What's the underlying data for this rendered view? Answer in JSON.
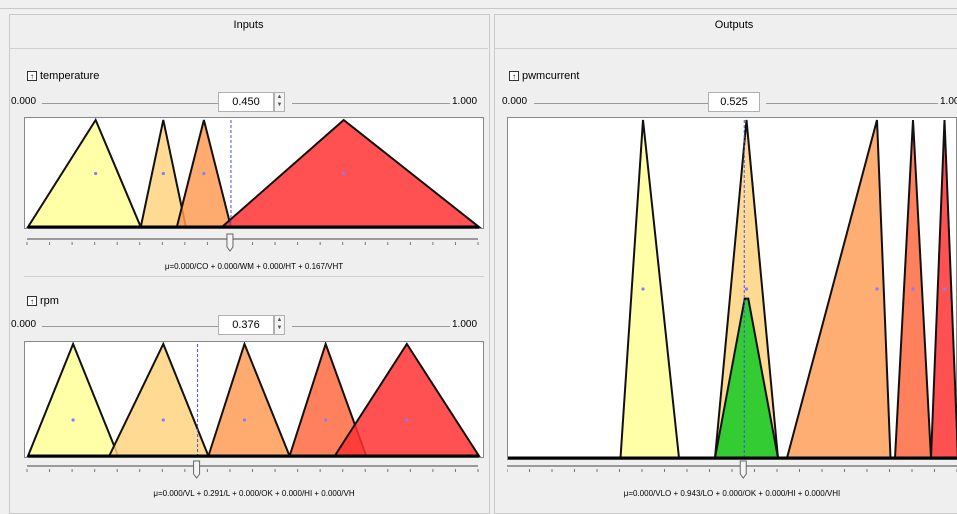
{
  "panels": {
    "inputs_title": "Inputs",
    "outputs_title": "Outputs"
  },
  "variables": {
    "temperature": {
      "name": "temperature",
      "min_label": "0.000",
      "max_label": "1.000",
      "value_text": "0.450",
      "value": 0.45,
      "formula": "μ=0.000/CO + 0.000/WM + 0.000/HT + 0.167/VHT",
      "terms": [
        {
          "id": "CO",
          "a": 0.0,
          "b": 0.15,
          "c": 0.25,
          "color": "#ffff99"
        },
        {
          "id": "WM",
          "a": 0.25,
          "b": 0.3,
          "c": 0.35,
          "color": "#ffd47f"
        },
        {
          "id": "HT",
          "a": 0.33,
          "b": 0.39,
          "c": 0.45,
          "color": "#ff9b55"
        },
        {
          "id": "VHT",
          "a": 0.43,
          "b": 0.7,
          "c": 1.0,
          "color": "#ff3333"
        }
      ]
    },
    "rpm": {
      "name": "rpm",
      "min_label": "0.000",
      "max_label": "1.000",
      "value_text": "0.376",
      "value": 0.376,
      "formula": "μ=0.000/VL + 0.291/L + 0.000/OK + 0.000/HI + 0.000/VH",
      "terms": [
        {
          "id": "VL",
          "a": 0.0,
          "b": 0.1,
          "c": 0.2,
          "color": "#ffff99"
        },
        {
          "id": "L",
          "a": 0.18,
          "b": 0.3,
          "c": 0.4,
          "color": "#ffd47f"
        },
        {
          "id": "OK",
          "a": 0.4,
          "b": 0.48,
          "c": 0.58,
          "color": "#ff9b55"
        },
        {
          "id": "HI",
          "a": 0.58,
          "b": 0.66,
          "c": 0.75,
          "color": "#ff6a3f"
        },
        {
          "id": "VH",
          "a": 0.68,
          "b": 0.84,
          "c": 1.0,
          "color": "#ff3333"
        }
      ]
    },
    "pwmcurrent": {
      "name": "pwmcurrent",
      "min_label": "0.000",
      "max_label": "1.000",
      "value_text": "0.525",
      "value": 0.525,
      "formula": "μ=0.000/VLO + 0.943/LO + 0.000/OK + 0.000/HI + 0.000/VHI",
      "activation": {
        "term": "LO",
        "degree": 0.943,
        "fill": "#33cc33"
      },
      "terms": [
        {
          "id": "VLO",
          "a": 0.25,
          "b": 0.3,
          "c": 0.38,
          "color": "#ffff99"
        },
        {
          "id": "LO",
          "a": 0.46,
          "b": 0.53,
          "c": 0.6,
          "color": "#ffd47f"
        },
        {
          "id": "OK",
          "a": 0.62,
          "b": 0.82,
          "c": 0.85,
          "color": "#ffa05a"
        },
        {
          "id": "HI",
          "a": 0.86,
          "b": 0.9,
          "c": 0.94,
          "color": "#ff6a3f"
        },
        {
          "id": "VHI",
          "a": 0.94,
          "b": 0.97,
          "c": 1.0,
          "color": "#ff3333"
        }
      ]
    }
  }
}
